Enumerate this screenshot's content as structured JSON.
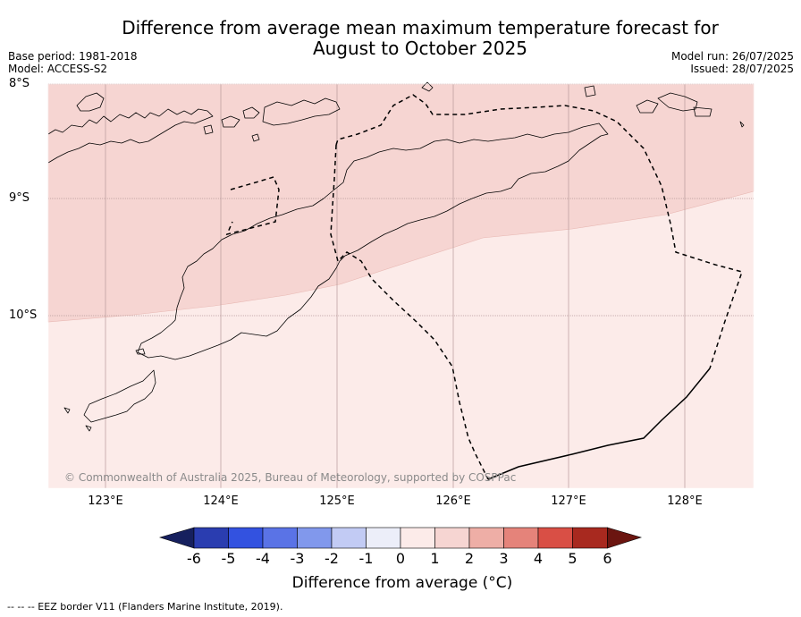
{
  "title_line1": "Difference from average mean maximum temperature forecast for",
  "title_line2": "August to October 2025",
  "base_period": "Base period: 1981-2018",
  "model": "Model: ACCESS-S2",
  "model_run": "Model run: 26/07/2025",
  "issued": "Issued: 28/07/2025",
  "copyright": "© Commonwealth of Australia 2025, Bureau of Meteorology, supported by COSPPac",
  "footnote": "--  --  -- EEZ border V11 (Flanders Marine Institute, 2019).",
  "lat_labels": [
    "8°S",
    "9°S",
    "10°S"
  ],
  "lon_labels": [
    "123°E",
    "124°E",
    "125°E",
    "126°E",
    "127°E",
    "128°E"
  ],
  "colorbar": {
    "label": "Difference from average (°C)",
    "ticks": [
      "-6",
      "-5",
      "-4",
      "-3",
      "-2",
      "-1",
      "0",
      "1",
      "2",
      "3",
      "4",
      "5",
      "6"
    ],
    "colors": [
      "#16205e",
      "#2a3db0",
      "#3352e0",
      "#5a73e6",
      "#8198ec",
      "#c2cbf4",
      "#eceef9",
      "#fcebe9",
      "#f6d5d2",
      "#eeaea6",
      "#e5837a",
      "#d94f45",
      "#a8291f",
      "#6b1510"
    ]
  },
  "map": {
    "region_colors": {
      "anomaly_0_to_1": "#fcebe9",
      "anomaly_1_to_2": "#f6d5d2"
    }
  }
}
